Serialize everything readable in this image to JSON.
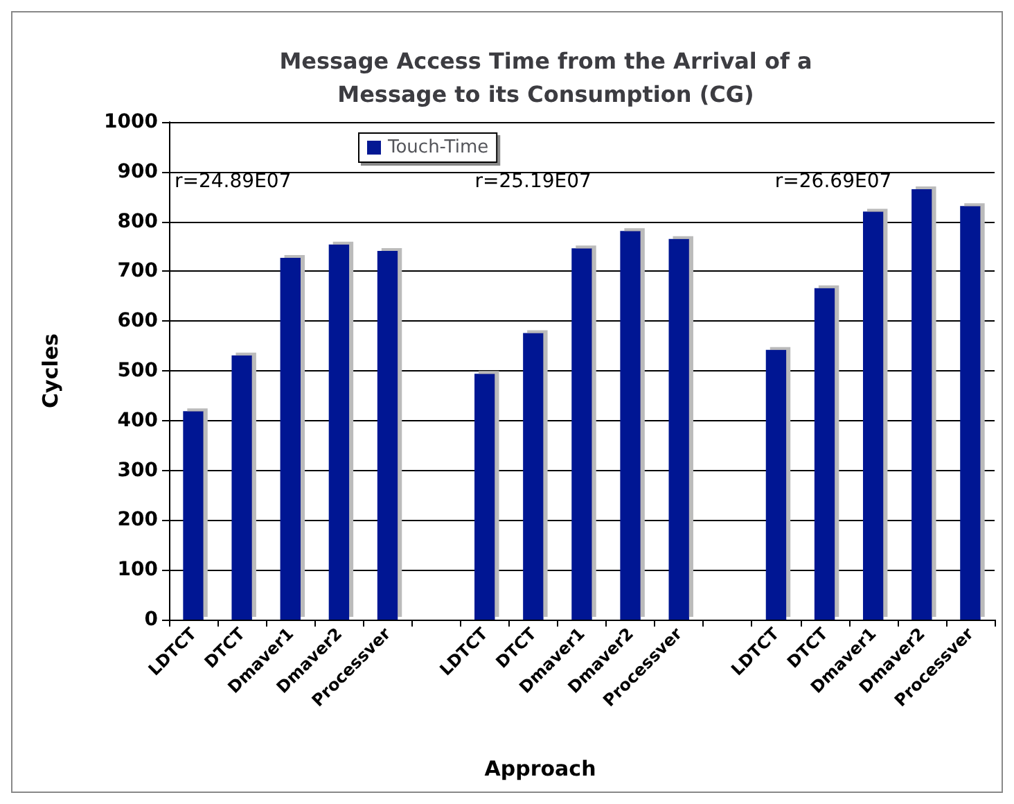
{
  "chart_data": {
    "type": "bar",
    "title": "Message Access Time from the Arrival of a\nMessage to its Consumption (CG)",
    "xlabel": "Approach",
    "ylabel": "Cycles",
    "categories": [
      "LDTCT",
      "DTCT",
      "Dmaver1",
      "Dmaver2",
      "Processver",
      null,
      "LDTCT",
      "DTCT",
      "Dmaver1",
      "Dmaver2",
      "Processver",
      null,
      "LDTCT",
      "DTCT",
      "Dmaver1",
      "Dmaver2",
      "Processver"
    ],
    "series": [
      {
        "name": "Touch-Time",
        "color": "#041893",
        "values": [
          419,
          531,
          727,
          754,
          741,
          null,
          494,
          576,
          746,
          781,
          765,
          null,
          542,
          666,
          820,
          865,
          831
        ]
      }
    ],
    "annotations": [
      "r=24.89E07",
      "r=25.19E07",
      "r=26.69E07"
    ],
    "ylim": [
      0,
      1000
    ],
    "yticks": [
      0,
      100,
      200,
      300,
      400,
      500,
      600,
      700,
      800,
      900,
      1000
    ],
    "grid": "y",
    "legend": "top"
  }
}
